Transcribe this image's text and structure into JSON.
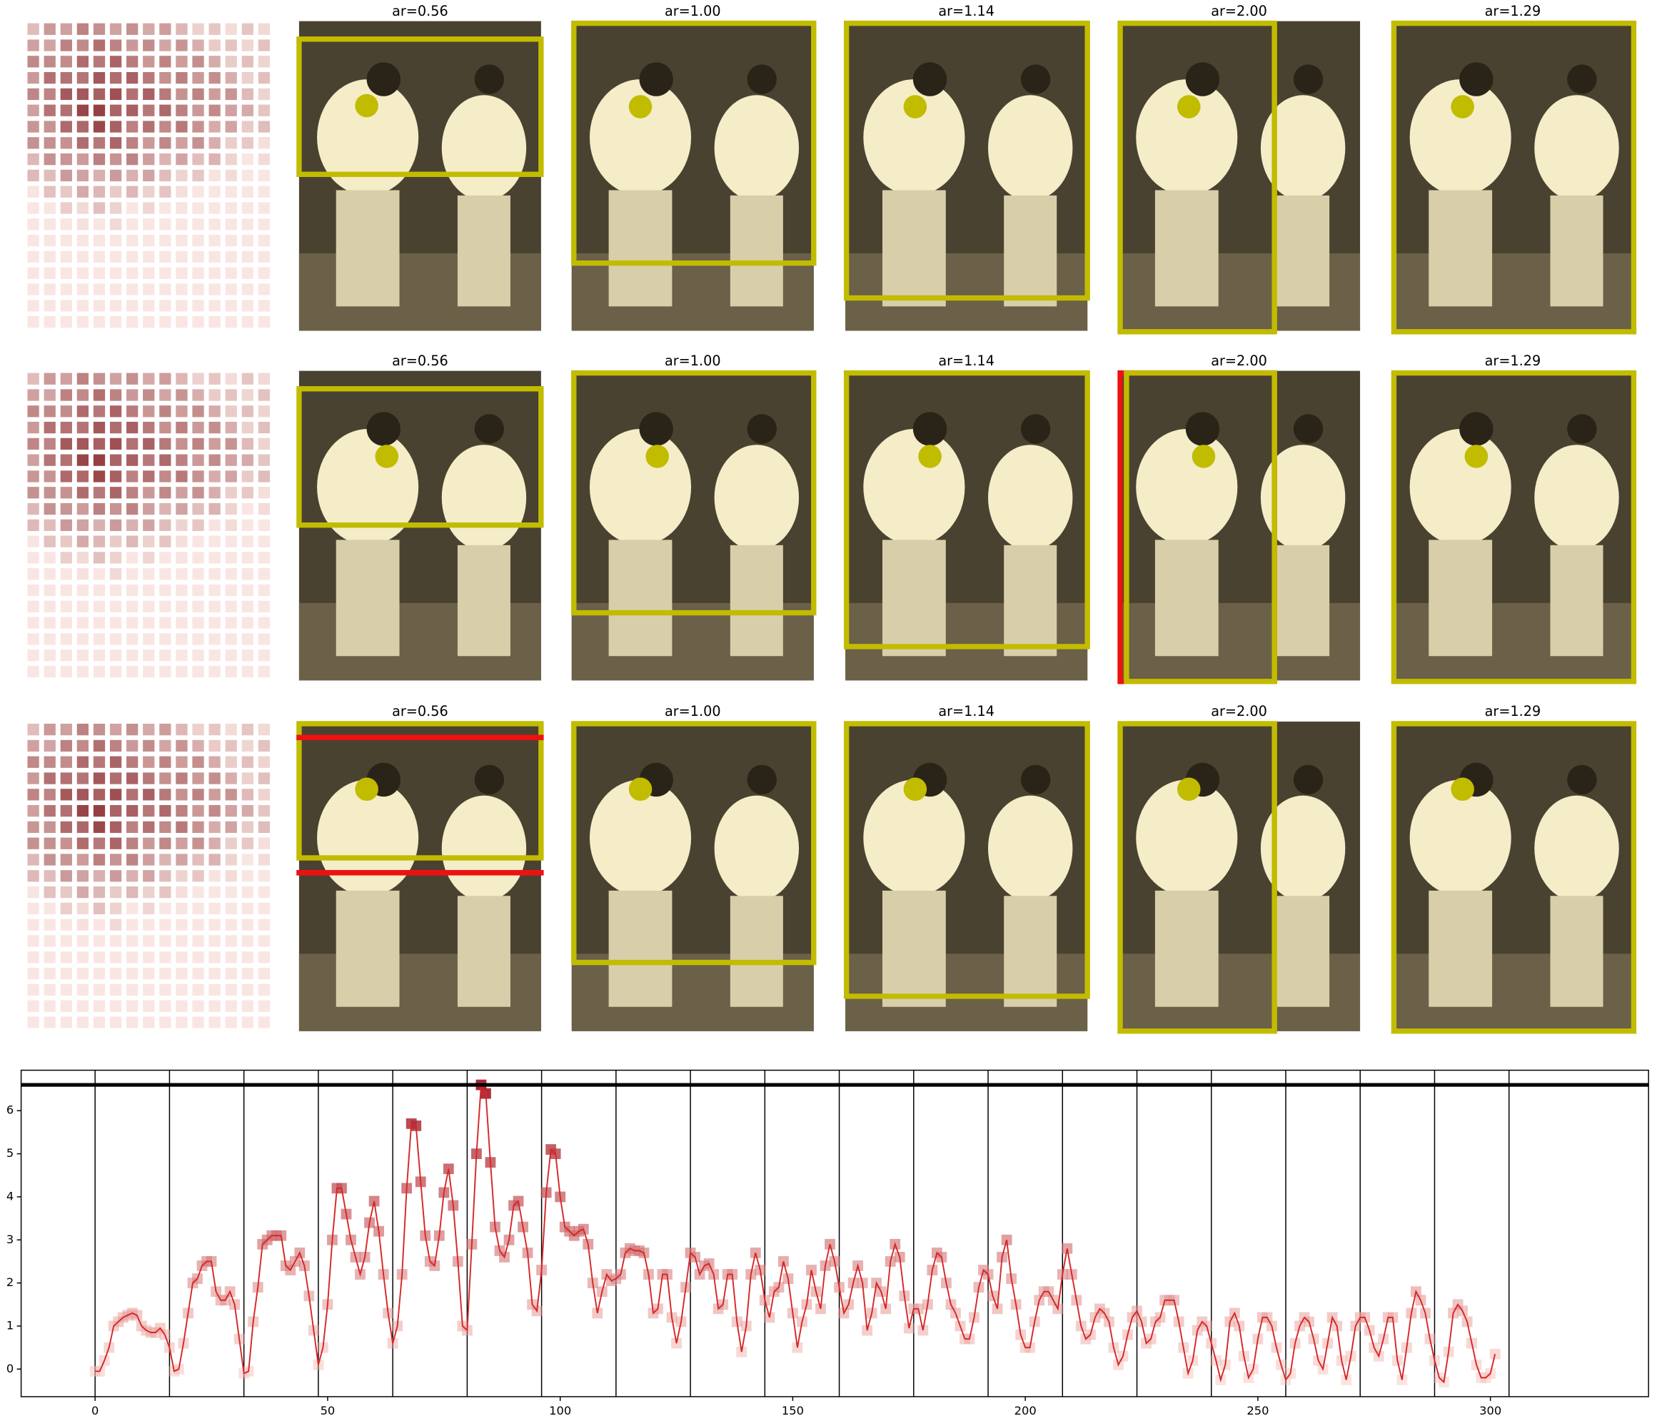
{
  "panels": [
    {
      "titles": [
        "ar=0.56",
        "ar=1.00",
        "ar=1.14",
        "ar=2.00",
        "ar=1.29"
      ]
    },
    {
      "titles": [
        "ar=0.56",
        "ar=1.00",
        "ar=1.14",
        "ar=2.00",
        "ar=1.29"
      ]
    },
    {
      "titles": [
        "ar=0.56",
        "ar=1.00",
        "ar=1.14",
        "ar=2.00",
        "ar=1.29"
      ]
    }
  ],
  "chart_data": {
    "type": "line",
    "x": [
      0,
      1,
      2,
      3,
      4,
      5,
      6,
      7,
      8,
      9,
      10,
      11,
      12,
      13,
      14,
      15,
      16,
      17,
      18,
      19,
      20,
      21,
      22,
      23,
      24,
      25,
      26,
      27,
      28,
      29,
      30,
      31,
      32,
      33,
      34,
      35,
      36,
      37,
      38,
      39,
      40,
      41,
      42,
      43,
      44,
      45,
      46,
      47,
      48,
      49,
      50,
      51,
      52,
      53,
      54,
      55,
      56,
      57,
      58,
      59,
      60,
      61,
      62,
      63,
      64,
      65,
      66,
      67,
      68,
      69,
      70,
      71,
      72,
      73,
      74,
      75,
      76,
      77,
      78,
      79,
      80,
      81,
      82,
      83,
      84,
      85,
      86,
      87,
      88,
      89,
      90,
      91,
      92,
      93,
      94,
      95,
      96,
      97,
      98,
      99,
      100,
      101,
      102,
      103,
      104,
      105,
      106,
      107,
      108,
      109,
      110,
      111,
      112,
      113,
      114,
      115,
      116,
      117,
      118,
      119,
      120,
      121,
      122,
      123,
      124,
      125,
      126,
      127,
      128,
      129,
      130,
      131,
      132,
      133,
      134,
      135,
      136,
      137,
      138,
      139,
      140,
      141,
      142,
      143,
      144,
      145,
      146,
      147,
      148,
      149,
      150,
      151,
      152,
      153,
      154,
      155,
      156,
      157,
      158,
      159,
      160,
      161,
      162,
      163,
      164,
      165,
      166,
      167,
      168,
      169,
      170,
      171,
      172,
      173,
      174,
      175,
      176,
      177,
      178,
      179,
      180,
      181,
      182,
      183,
      184,
      185,
      186,
      187,
      188,
      189,
      190,
      191,
      192,
      193,
      194,
      195,
      196,
      197,
      198,
      199,
      200,
      201,
      202,
      203,
      204,
      205,
      206,
      207,
      208,
      209,
      210,
      211,
      212,
      213,
      214,
      215,
      216,
      217,
      218,
      219,
      220,
      221,
      222,
      223,
      224,
      225,
      226,
      227,
      228,
      229,
      230,
      231,
      232,
      233,
      234,
      235,
      236,
      237,
      238,
      239,
      240,
      241,
      242,
      243,
      244,
      245,
      246,
      247,
      248,
      249,
      250,
      251,
      252,
      253,
      254,
      255,
      256,
      257,
      258,
      259,
      260,
      261,
      262,
      263,
      264,
      265,
      266,
      267,
      268,
      269,
      270,
      271,
      272,
      273,
      274,
      275,
      276,
      277,
      278,
      279,
      280,
      281,
      282,
      283,
      284,
      285,
      286,
      287,
      288,
      289,
      290,
      291,
      292,
      293,
      294,
      295,
      296,
      297,
      298,
      299,
      300,
      301
    ],
    "values": [
      -0.05,
      -0.05,
      0.2,
      0.5,
      1.0,
      1.1,
      1.2,
      1.25,
      1.3,
      1.25,
      1.0,
      0.9,
      0.85,
      0.85,
      0.95,
      0.8,
      0.5,
      -0.05,
      0,
      0.6,
      1.3,
      2.0,
      2.1,
      2.4,
      2.5,
      2.5,
      1.8,
      1.6,
      1.6,
      1.8,
      1.5,
      0.7,
      -0.1,
      -0.05,
      1.1,
      1.9,
      2.9,
      3.0,
      3.1,
      3.1,
      3.1,
      2.4,
      2.3,
      2.5,
      2.7,
      2.4,
      1.7,
      0.9,
      0.1,
      0.5,
      1.5,
      3.0,
      4.2,
      4.2,
      3.6,
      3.0,
      2.6,
      2.2,
      2.6,
      3.4,
      3.9,
      3.2,
      2.2,
      1.3,
      0.6,
      1.0,
      2.2,
      4.2,
      5.7,
      5.65,
      4.35,
      3.1,
      2.5,
      2.4,
      3.1,
      4.1,
      4.65,
      3.8,
      2.5,
      1.0,
      0.9,
      2.9,
      5.0,
      6.6,
      6.4,
      4.8,
      3.3,
      2.75,
      2.6,
      3.0,
      3.8,
      3.9,
      3.3,
      2.7,
      1.5,
      1.35,
      2.3,
      4.1,
      5.1,
      5.0,
      4.0,
      3.3,
      3.2,
      3.1,
      3.2,
      3.25,
      2.9,
      2.0,
      1.3,
      1.8,
      2.2,
      2.05,
      2.1,
      2.2,
      2.7,
      2.8,
      2.75,
      2.75,
      2.7,
      2.2,
      1.3,
      1.4,
      2.2,
      2.2,
      1.2,
      0.6,
      1.1,
      1.9,
      2.7,
      2.6,
      2.2,
      2.4,
      2.45,
      2.2,
      1.4,
      1.5,
      2.2,
      2.2,
      1.1,
      0.4,
      1.0,
      2.2,
      2.7,
      2.3,
      1.6,
      1.2,
      1.8,
      1.9,
      2.5,
      2.1,
      1.3,
      0.5,
      1.1,
      1.5,
      2.3,
      1.8,
      1.4,
      2.4,
      2.9,
      2.5,
      1.9,
      1.3,
      1.5,
      2.0,
      2.4,
      2.0,
      0.9,
      1.3,
      2.0,
      1.8,
      1.4,
      2.5,
      2.9,
      2.6,
      1.7,
      0.95,
      1.4,
      1.4,
      0.9,
      1.5,
      2.3,
      2.7,
      2.6,
      2.0,
      1.5,
      1.3,
      1.0,
      0.7,
      0.7,
      1.2,
      1.9,
      2.3,
      2.2,
      1.7,
      1.4,
      2.6,
      3.0,
      2.1,
      1.5,
      0.8,
      0.5,
      0.5,
      1.1,
      1.6,
      1.8,
      1.8,
      1.6,
      1.4,
      2.2,
      2.8,
      2.2,
      1.6,
      1.0,
      0.7,
      0.8,
      1.2,
      1.4,
      1.3,
      1.1,
      0.5,
      0.1,
      0.3,
      0.8,
      1.2,
      1.35,
      1.1,
      0.6,
      0.7,
      1.1,
      1.2,
      1.6,
      1.6,
      1.6,
      1.1,
      0.5,
      -0.1,
      0.2,
      0.9,
      1.1,
      1.0,
      0.6,
      0.2,
      -0.25,
      0.1,
      1.1,
      1.3,
      1.0,
      0.3,
      -0.2,
      0,
      0.7,
      1.2,
      1.2,
      1.0,
      0.5,
      0.1,
      -0.25,
      -0.1,
      0.6,
      1.0,
      1.2,
      1.1,
      0.7,
      0.2,
      0.0,
      0.6,
      1.2,
      1.0,
      0.2,
      -0.25,
      0.3,
      1.0,
      1.2,
      1.2,
      0.9,
      0.5,
      0.3,
      0.7,
      1.2,
      1.2,
      0.2,
      -0.25,
      0.5,
      1.3,
      1.8,
      1.6,
      1.3,
      0.7,
      0.2,
      -0.2,
      -0.3,
      0.4,
      1.3,
      1.5,
      1.35,
      1.1,
      0.6,
      0.1,
      -0.2,
      -0.2,
      -0.1,
      0.35
    ],
    "color": "#d62728",
    "xlim": [
      -15.9,
      334
    ],
    "ylim": [
      -0.64,
      6.94
    ],
    "xticks": [
      0,
      50,
      100,
      150,
      200,
      250,
      300
    ],
    "yticks": [
      0,
      1,
      2,
      3,
      4,
      5,
      6
    ],
    "vlines": [
      0,
      16,
      32,
      48,
      64,
      80,
      96,
      112,
      128,
      144,
      160,
      176,
      192,
      208,
      224,
      240,
      256,
      272,
      288,
      304
    ],
    "hline": 6.6
  }
}
